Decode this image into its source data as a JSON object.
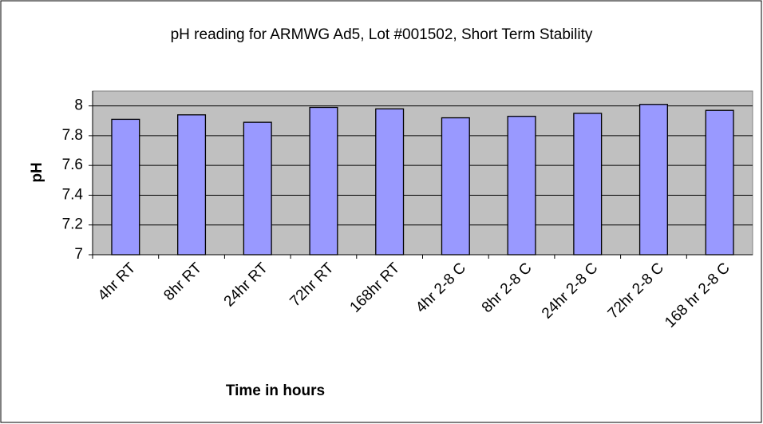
{
  "chart_data": {
    "type": "bar",
    "title": "pH reading for ARMWG Ad5, Lot #001502, Short Term Stability",
    "x_label": "Time in hours",
    "y_label": "pH",
    "categories": [
      "4hr RT",
      "8hr RT",
      "24hr RT",
      "72hr RT",
      "168hr RT",
      "4hr 2-8 C",
      "8hr 2-8 C",
      "24hr 2-8 C",
      "72hr 2-8 C",
      "168 hr 2-8 C"
    ],
    "values": [
      7.91,
      7.94,
      7.89,
      7.99,
      7.98,
      7.92,
      7.93,
      7.95,
      8.01,
      7.97
    ],
    "color": "#9999ff",
    "ylim": [
      7,
      8.1
    ],
    "yticks": [
      7,
      7.2,
      7.4,
      7.6,
      7.8,
      8
    ],
    "grid": true
  }
}
